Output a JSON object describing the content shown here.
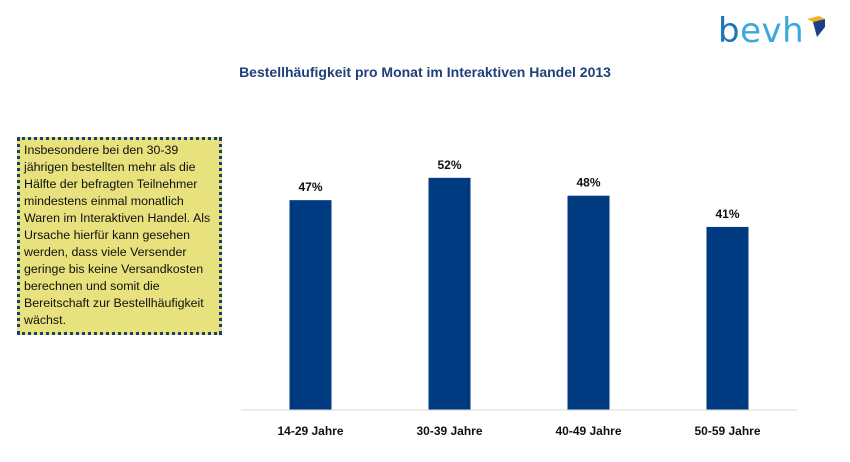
{
  "brand": {
    "logo_text": "bevh",
    "colors": {
      "logo_b": "#1c74b8",
      "logo_rest": "#3aa8de",
      "mark_top": "#f0b31c",
      "mark_side": "#1c3f86"
    }
  },
  "note": {
    "text": "Insbesondere bei den 30-39 jährigen bestellten mehr als die Hälfte der befragten Teilnehmer mindestens einmal monatlich Waren im Interaktiven Handel. Als Ursache hierfür kann gesehen werden, dass viele Versender geringe bis keine Versandkosten berechnen und somit die Bereitschaft zur Bestellhäufigkeit wächst."
  },
  "chart_data": {
    "type": "bar",
    "title": "Bestellhäufigkeit pro Monat im Interaktiven Handel 2013",
    "categories": [
      "14-29 Jahre",
      "30-39 Jahre",
      "40-49 Jahre",
      "50-59 Jahre"
    ],
    "values": [
      47,
      52,
      48,
      41
    ],
    "value_labels": [
      "47%",
      "52%",
      "48%",
      "41%"
    ],
    "ylim": [
      0,
      71
    ],
    "bar_color": "#003a80",
    "axis_color": "#d9d9d9",
    "grid": false,
    "legend": false
  }
}
